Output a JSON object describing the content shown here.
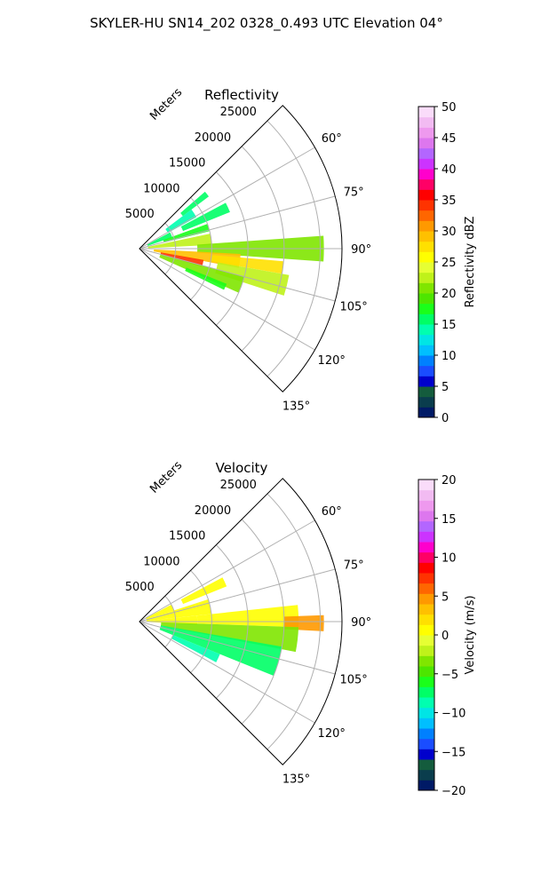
{
  "figure": {
    "suptitle": "SKYLER-HU  SN14_202  0328_0.493 UTC Elevation 04°"
  },
  "chart_data": [
    {
      "type": "heatmap",
      "projection": "polar-sector",
      "title": "Reflectivity",
      "radial_axis_label": "Meters",
      "radial_ticks": [
        5000,
        10000,
        15000,
        20000,
        25000
      ],
      "radial_tick_labels": [
        "5000",
        "10000",
        "15000",
        "20000",
        "25000"
      ],
      "rlim": [
        0,
        28000
      ],
      "azimuth_range_deg": [
        45,
        135
      ],
      "azimuth_tick_labels": [
        "60°",
        "75°",
        "90°",
        "105°",
        "120°",
        "135°"
      ],
      "azimuth_ticks_deg": [
        60,
        75,
        90,
        105,
        120,
        135
      ],
      "grid": true,
      "colorbar": {
        "label": "Reflectivity dBZ",
        "vmin": 0,
        "vmax": 50,
        "ticks": [
          0,
          5,
          10,
          15,
          20,
          25,
          30,
          35,
          40,
          45,
          50
        ],
        "tick_labels": [
          "0",
          "5",
          "10",
          "15",
          "20",
          "25",
          "30",
          "35",
          "40",
          "45",
          "50"
        ],
        "colors": [
          "#001a66",
          "#0a3d4d",
          "#145c3d",
          "#0000cc",
          "#1a4dff",
          "#0080ff",
          "#00bfff",
          "#00e5e5",
          "#00ffb0",
          "#00ff66",
          "#1aff1a",
          "#4de600",
          "#80e600",
          "#bff21a",
          "#e6ff33",
          "#ffff00",
          "#ffe000",
          "#ffc000",
          "#ff9900",
          "#ff6600",
          "#ff3300",
          "#ff0000",
          "#ff0066",
          "#ff00cc",
          "#cc33ff",
          "#b366ff",
          "#dd77ee",
          "#ee99ee",
          "#f2bbf2",
          "#fadcfa"
        ]
      },
      "regions": [
        {
          "az": [
            49,
            53
          ],
          "r": [
            7500,
            12000
          ],
          "value": 16
        },
        {
          "az": [
            53,
            61
          ],
          "r": [
            4500,
            9000
          ],
          "value": 14
        },
        {
          "az": [
            62,
            68
          ],
          "r": [
            6500,
            13500
          ],
          "value": 16
        },
        {
          "az": [
            62,
            71
          ],
          "r": [
            1200,
            4800
          ],
          "value": 15
        },
        {
          "az": [
            70,
            76
          ],
          "r": [
            3500,
            10000
          ],
          "value": 18
        },
        {
          "az": [
            78,
            87
          ],
          "r": [
            1200,
            10000
          ],
          "value": 22
        },
        {
          "az": [
            86,
            94
          ],
          "r": [
            8000,
            25500
          ],
          "value": 21
        },
        {
          "az": [
            93,
            101
          ],
          "r": [
            2000,
            14000
          ],
          "value": 29
        },
        {
          "az": [
            100,
            106
          ],
          "r": [
            3000,
            9000
          ],
          "value": 34
        },
        {
          "az": [
            95,
            100
          ],
          "r": [
            10000,
            20000
          ],
          "value": 27
        },
        {
          "az": [
            100,
            108
          ],
          "r": [
            11000,
            21000
          ],
          "value": 22
        },
        {
          "az": [
            105,
            114
          ],
          "r": [
            3000,
            15000
          ],
          "value": 21
        },
        {
          "az": [
            112,
            116
          ],
          "r": [
            7000,
            13000
          ],
          "value": 18
        }
      ]
    },
    {
      "type": "heatmap",
      "projection": "polar-sector",
      "title": "Velocity",
      "radial_axis_label": "Meters",
      "radial_ticks": [
        5000,
        10000,
        15000,
        20000,
        25000
      ],
      "radial_tick_labels": [
        "5000",
        "10000",
        "15000",
        "20000",
        "25000"
      ],
      "rlim": [
        0,
        28000
      ],
      "azimuth_range_deg": [
        45,
        135
      ],
      "azimuth_tick_labels": [
        "60°",
        "75°",
        "90°",
        "105°",
        "120°",
        "135°"
      ],
      "azimuth_ticks_deg": [
        60,
        75,
        90,
        105,
        120,
        135
      ],
      "grid": true,
      "colorbar": {
        "label": "Velocity (m/s)",
        "vmin": -20,
        "vmax": 20,
        "ticks": [
          -20,
          -15,
          -10,
          -5,
          0,
          5,
          10,
          15,
          20
        ],
        "tick_labels": [
          "−20",
          "−15",
          "−10",
          "−5",
          "0",
          "5",
          "10",
          "15",
          "20"
        ],
        "colors": [
          "#001a66",
          "#0a3d4d",
          "#145c3d",
          "#0000cc",
          "#1a4dff",
          "#0080ff",
          "#00bfff",
          "#00e5e5",
          "#00ffb0",
          "#00ff66",
          "#1aff1a",
          "#4de600",
          "#80e600",
          "#bff21a",
          "#e6ff33",
          "#ffff00",
          "#ffe000",
          "#ffc000",
          "#ff9900",
          "#ff6600",
          "#ff3300",
          "#ff0000",
          "#ff0066",
          "#ff00cc",
          "#cc33ff",
          "#b366ff",
          "#dd77ee",
          "#ee99ee",
          "#f2bbf2",
          "#fadcfa"
        ]
      },
      "regions": [
        {
          "az": [
            62,
            68
          ],
          "r": [
            6500,
            13000
          ],
          "value": 1
        },
        {
          "az": [
            62,
            72
          ],
          "r": [
            1000,
            5000
          ],
          "value": 0
        },
        {
          "az": [
            72,
            84
          ],
          "r": [
            1000,
            10000
          ],
          "value": 0
        },
        {
          "az": [
            84,
            93
          ],
          "r": [
            1000,
            8000
          ],
          "value": 0
        },
        {
          "az": [
            84,
            92
          ],
          "r": [
            8000,
            22000
          ],
          "value": 0
        },
        {
          "az": [
            88,
            93
          ],
          "r": [
            20000,
            25500
          ],
          "value": 4
        },
        {
          "az": [
            92,
            101
          ],
          "r": [
            3000,
            22000
          ],
          "value": -3
        },
        {
          "az": [
            100,
            112
          ],
          "r": [
            3000,
            20000
          ],
          "value": -7
        },
        {
          "az": [
            112,
            118
          ],
          "r": [
            5000,
            12000
          ],
          "value": -9
        }
      ]
    }
  ]
}
